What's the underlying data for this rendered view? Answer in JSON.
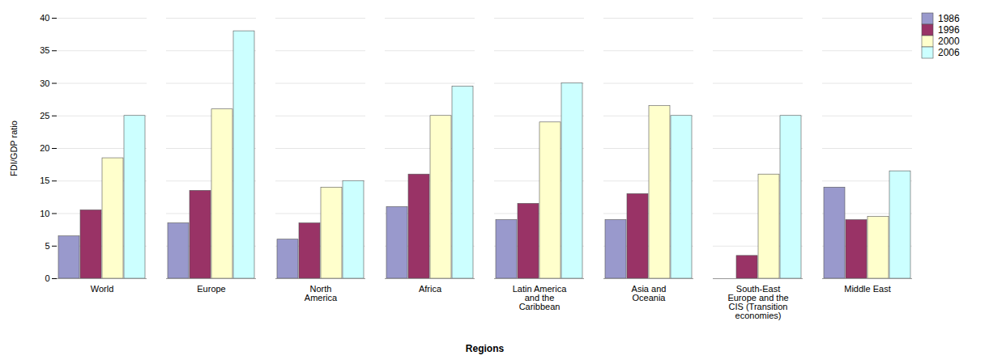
{
  "chart_data": {
    "type": "bar",
    "xlabel": "Regions",
    "ylabel": "FDI/GDP ratio",
    "categories": [
      "World",
      "Europe",
      "North\nAmerica",
      "Africa",
      "Latin America\nand the\nCaribbean",
      "Asia and\nOceania",
      "South-East\nEurope and the\nCIS (Transition\neconomies)",
      "Middle East"
    ],
    "series": [
      {
        "name": "1986",
        "color": "#9999CC",
        "values": [
          6.5,
          8.5,
          6.0,
          11.0,
          9.0,
          9.0,
          0.0,
          14.0
        ]
      },
      {
        "name": "1996",
        "color": "#993366",
        "values": [
          10.5,
          13.5,
          8.5,
          16.0,
          11.5,
          13.0,
          3.5,
          9.0
        ]
      },
      {
        "name": "2000",
        "color": "#FFFFCC",
        "values": [
          18.5,
          26.0,
          14.0,
          25.0,
          24.0,
          26.5,
          16.0,
          9.5
        ]
      },
      {
        "name": "2006",
        "color": "#CCFFFF",
        "values": [
          25.0,
          38.0,
          15.0,
          29.5,
          30.0,
          25.0,
          25.0,
          16.5
        ]
      }
    ],
    "ylim": [
      0,
      40
    ],
    "yticks": [
      0,
      5,
      10,
      15,
      20,
      25,
      30,
      35,
      40
    ],
    "grid": true,
    "legend": "upper right"
  }
}
